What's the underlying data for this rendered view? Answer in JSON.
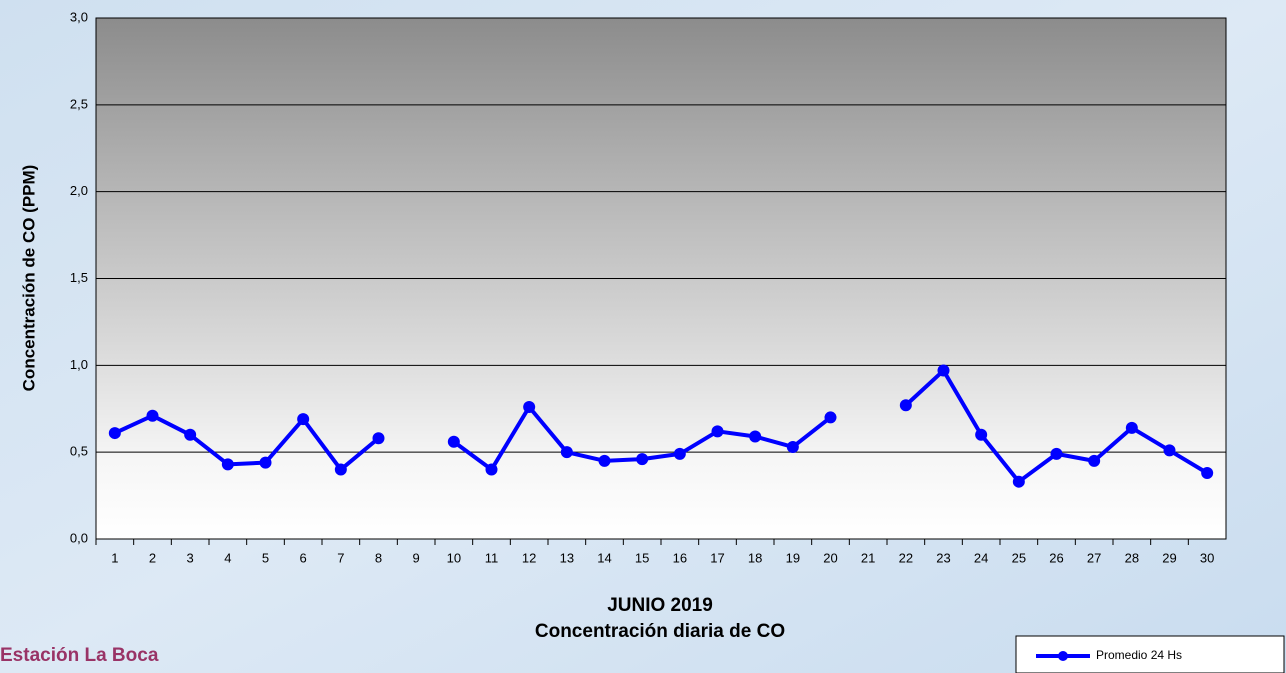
{
  "chart_data": {
    "type": "line",
    "title": "JUNIO 2019",
    "subtitle": "Concentración diaria de CO",
    "annotation": "Estación La Boca",
    "y_label": "Concentración de CO (PPM)",
    "categories": [
      "1",
      "2",
      "3",
      "4",
      "5",
      "6",
      "7",
      "8",
      "9",
      "10",
      "11",
      "12",
      "13",
      "14",
      "15",
      "16",
      "17",
      "18",
      "19",
      "20",
      "21",
      "22",
      "23",
      "24",
      "25",
      "26",
      "27",
      "28",
      "29",
      "30"
    ],
    "series": [
      {
        "name": "Promedio 24 Hs",
        "color": "#0000ff",
        "values": [
          0.61,
          0.71,
          0.6,
          0.43,
          0.44,
          0.69,
          0.4,
          0.58,
          null,
          0.56,
          0.4,
          0.76,
          0.5,
          0.45,
          0.46,
          0.49,
          0.62,
          0.59,
          0.53,
          0.7,
          null,
          0.77,
          0.97,
          0.6,
          0.33,
          0.49,
          0.45,
          0.64,
          0.51,
          0.38
        ]
      }
    ],
    "ylim": [
      0,
      3
    ],
    "yticks": [
      {
        "value": 0,
        "label": "0,0"
      },
      {
        "value": 0.5,
        "label": "0,5"
      },
      {
        "value": 1,
        "label": "1,0"
      },
      {
        "value": 1.5,
        "label": "1,5"
      },
      {
        "value": 2,
        "label": "2,0"
      },
      {
        "value": 2.5,
        "label": "2,5"
      },
      {
        "value": 3,
        "label": "3,0"
      }
    ],
    "grid": true,
    "legend": "bottom-right"
  }
}
